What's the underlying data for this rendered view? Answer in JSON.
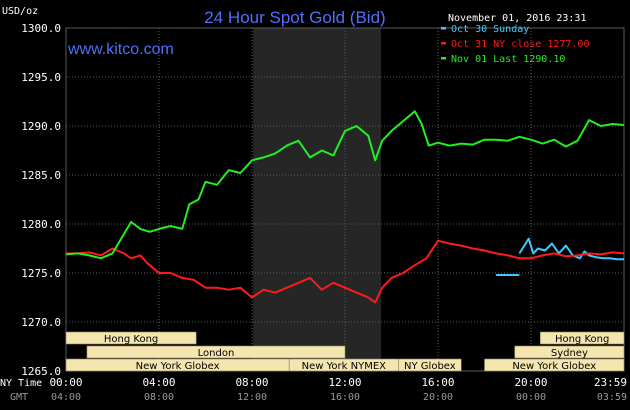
{
  "chart_data": {
    "type": "line",
    "title": "24 Hour Spot Gold (Bid)",
    "site": "www.kitco.com",
    "date_label": "November 01, 2016 23:31",
    "ylabel": "USD/oz",
    "ylim": [
      1265,
      1300
    ],
    "y_ticks": [
      "1300.0",
      "1295.0",
      "1290.0",
      "1285.0",
      "1280.0",
      "1275.0",
      "1270.0",
      "1265.0"
    ],
    "x_label_ny": "NY Time",
    "x_label_gmt": "GMT",
    "x_ticks_ny": [
      "00:00",
      "04:00",
      "08:00",
      "12:00",
      "16:00",
      "20:00",
      "23:59"
    ],
    "x_ticks_gmt": [
      "04:00",
      "08:00",
      "12:00",
      "16:00",
      "20:00",
      "00:00",
      "03:59"
    ],
    "grid": true,
    "legend_position": "top-right",
    "colors": {
      "background": "#000000",
      "grid": "#5a5a5a",
      "shade": "#262626",
      "title": "#4f6fff",
      "session_box": "#f5e6b0"
    },
    "series": [
      {
        "name": "Oct 30 Sunday",
        "color": "#3fc8ff",
        "x": [
          18.5,
          19.5
        ],
        "values": [
          1274.8,
          1274.8
        ]
      },
      {
        "name": "Oct 30 Sunday",
        "color": "#3fc8ff",
        "x": [
          19.5,
          19.9,
          20.1,
          20.3,
          20.6,
          20.9,
          21.2,
          21.5,
          21.8,
          22.1,
          22.3,
          22.5,
          22.8,
          23.1,
          23.4,
          23.7,
          24.0
        ],
        "values": [
          1277.0,
          1278.5,
          1277.0,
          1277.5,
          1277.3,
          1278.0,
          1277.0,
          1277.8,
          1276.8,
          1276.5,
          1277.2,
          1276.8,
          1276.6,
          1276.5,
          1276.5,
          1276.4,
          1276.4
        ]
      },
      {
        "name": "Oct 31 NY close 1277.00",
        "color": "#ff1a1a",
        "x": [
          0,
          0.5,
          1.0,
          1.5,
          2.0,
          2.5,
          2.8,
          3.2,
          3.5,
          4.0,
          4.5,
          5.0,
          5.5,
          6.0,
          6.5,
          7.0,
          7.5,
          8.0,
          8.5,
          9.0,
          9.5,
          10.0,
          10.5,
          11.0,
          11.5,
          12.0,
          12.5,
          13.0,
          13.3,
          13.6,
          14.0,
          14.5,
          15.0,
          15.5,
          16.0,
          16.5,
          17.0,
          17.5,
          18.0,
          18.5,
          19.0,
          19.5,
          20.0,
          20.5,
          21.0,
          21.5,
          22.0,
          22.5,
          23.0,
          23.5,
          24.0
        ],
        "values": [
          1277.0,
          1277.0,
          1277.1,
          1276.8,
          1277.5,
          1277.0,
          1276.5,
          1276.8,
          1276.0,
          1275.0,
          1275.0,
          1274.5,
          1274.3,
          1273.5,
          1273.5,
          1273.3,
          1273.5,
          1272.5,
          1273.3,
          1273.0,
          1273.5,
          1274.0,
          1274.5,
          1273.3,
          1274.0,
          1273.5,
          1273.0,
          1272.5,
          1272.0,
          1273.5,
          1274.5,
          1275.0,
          1275.8,
          1276.5,
          1278.3,
          1278.0,
          1277.8,
          1277.5,
          1277.3,
          1277.0,
          1276.8,
          1276.5,
          1276.5,
          1276.8,
          1277.0,
          1276.7,
          1276.8,
          1277.0,
          1276.9,
          1277.1,
          1277.0
        ]
      },
      {
        "name": "Nov 01 Last 1290.10",
        "color": "#22ee22",
        "x": [
          0,
          0.5,
          1.0,
          1.5,
          2.0,
          2.5,
          2.8,
          3.2,
          3.6,
          4.0,
          4.5,
          5.0,
          5.3,
          5.7,
          6.0,
          6.5,
          7.0,
          7.5,
          8.0,
          8.5,
          9.0,
          9.5,
          10.0,
          10.5,
          11.0,
          11.5,
          12.0,
          12.5,
          13.0,
          13.3,
          13.6,
          14.0,
          14.5,
          15.0,
          15.3,
          15.6,
          16.0,
          16.5,
          17.0,
          17.5,
          18.0,
          18.5,
          19.0,
          19.5,
          20.0,
          20.5,
          21.0,
          21.5,
          22.0,
          22.5,
          23.0,
          23.5,
          24.0
        ],
        "values": [
          1276.9,
          1277.0,
          1276.8,
          1276.5,
          1277.0,
          1279.0,
          1280.2,
          1279.5,
          1279.2,
          1279.5,
          1279.8,
          1279.5,
          1282.0,
          1282.5,
          1284.3,
          1284.0,
          1285.5,
          1285.2,
          1286.5,
          1286.8,
          1287.2,
          1288.0,
          1288.5,
          1286.8,
          1287.5,
          1287.0,
          1289.5,
          1290.0,
          1289.0,
          1286.5,
          1288.5,
          1289.5,
          1290.5,
          1291.5,
          1290.2,
          1288.0,
          1288.3,
          1288.0,
          1288.2,
          1288.1,
          1288.6,
          1288.6,
          1288.5,
          1288.9,
          1288.6,
          1288.2,
          1288.6,
          1287.9,
          1288.5,
          1290.6,
          1290.0,
          1290.2,
          1290.1
        ]
      }
    ],
    "legend": [
      {
        "label": "Oct 30 Sunday",
        "color": "#3fc8ff"
      },
      {
        "label": "Oct 31 NY close 1277.00",
        "color": "#ff1a1a"
      },
      {
        "label": "Nov 01 Last 1290.10",
        "color": "#22ee22"
      }
    ],
    "shaded_range_hours": [
      8.05,
      13.55
    ],
    "sessions": [
      {
        "label": "Hong Kong",
        "start": 0,
        "end": 5.6,
        "row": 0
      },
      {
        "label": "London",
        "start": 0.9,
        "end": 12.0,
        "row": 1
      },
      {
        "label": "New York Globex",
        "start": 0,
        "end": 9.6,
        "row": 2
      },
      {
        "label": "New York NYMEX",
        "start": 9.6,
        "end": 14.3,
        "row": 2
      },
      {
        "label": "NY Globex",
        "start": 14.3,
        "end": 17.0,
        "row": 2
      },
      {
        "label": "Hong Kong",
        "start": 20.4,
        "end": 24.0,
        "row": 0
      },
      {
        "label": "Sydney",
        "start": 19.3,
        "end": 24.0,
        "row": 1
      },
      {
        "label": "New York Globex",
        "start": 18.0,
        "end": 24.0,
        "row": 2
      }
    ]
  }
}
